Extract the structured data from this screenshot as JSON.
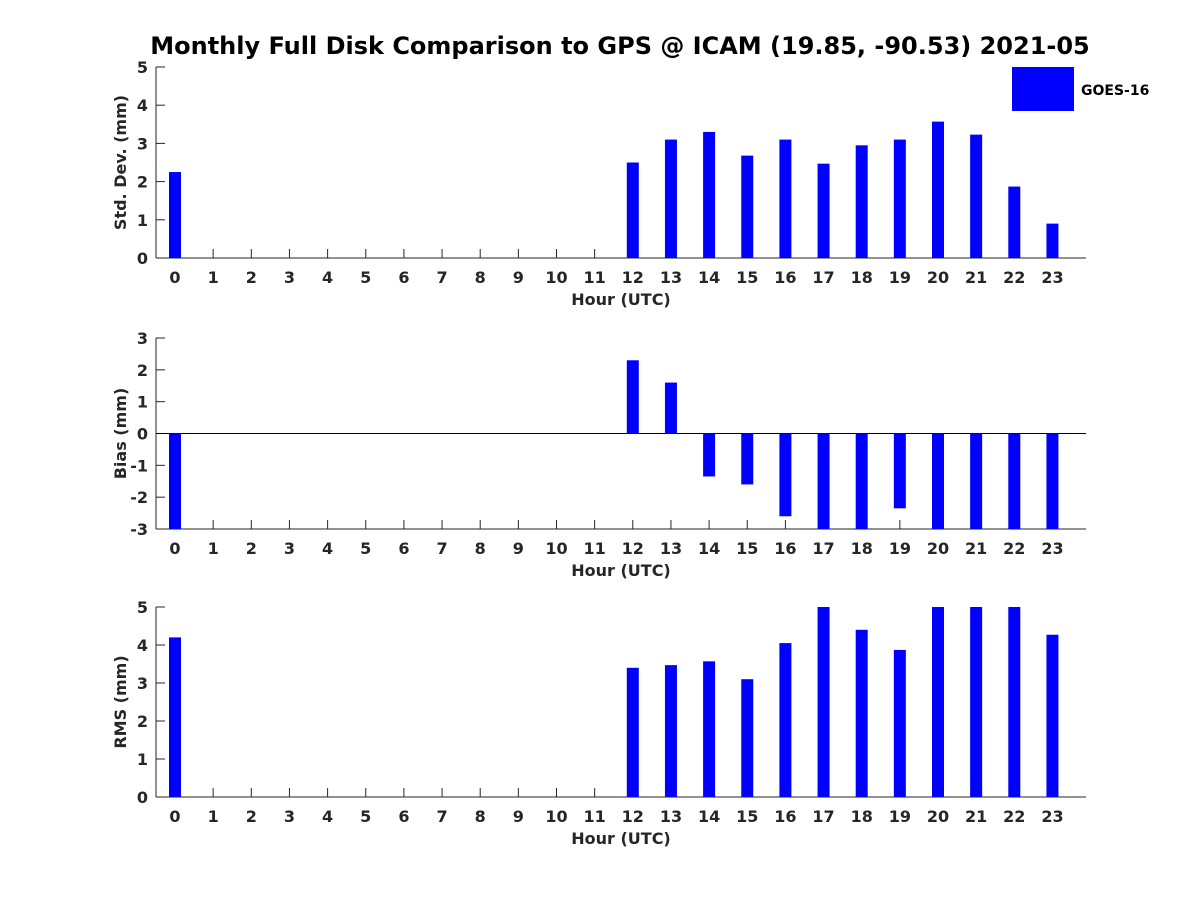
{
  "title": "Monthly Full Disk Comparison to GPS @ ICAM (19.85, -90.53) 2021-05",
  "legend": {
    "label": "GOES-16",
    "color": "#0000ff",
    "placement": "top-right"
  },
  "chart_data": [
    {
      "type": "bar",
      "name": "std-dev",
      "xlabel": "Hour (UTC)",
      "ylabel": "Std. Dev. (mm)",
      "ylim": [
        0,
        5
      ],
      "yticks": [
        0,
        1,
        2,
        3,
        4,
        5
      ],
      "categories": [
        "0",
        "1",
        "2",
        "3",
        "4",
        "5",
        "6",
        "7",
        "8",
        "9",
        "10",
        "11",
        "12",
        "13",
        "14",
        "15",
        "16",
        "17",
        "18",
        "19",
        "20",
        "21",
        "22",
        "23"
      ],
      "series": [
        {
          "name": "GOES-16",
          "color": "#0000ff",
          "values": [
            2.25,
            null,
            null,
            null,
            null,
            null,
            null,
            null,
            null,
            null,
            null,
            null,
            2.5,
            3.1,
            3.3,
            2.68,
            3.1,
            2.47,
            2.95,
            3.1,
            3.57,
            3.23,
            1.87,
            0.9
          ]
        }
      ]
    },
    {
      "type": "bar",
      "name": "bias",
      "xlabel": "Hour (UTC)",
      "ylabel": "Bias (mm)",
      "ylim": [
        -3,
        3
      ],
      "yticks": [
        -3,
        -2,
        -1,
        0,
        1,
        2,
        3
      ],
      "zero_line": true,
      "categories": [
        "0",
        "1",
        "2",
        "3",
        "4",
        "5",
        "6",
        "7",
        "8",
        "9",
        "10",
        "11",
        "12",
        "13",
        "14",
        "15",
        "16",
        "17",
        "18",
        "19",
        "20",
        "21",
        "22",
        "23"
      ],
      "series": [
        {
          "name": "GOES-16",
          "color": "#0000ff",
          "values": [
            -3.0,
            null,
            null,
            null,
            null,
            null,
            null,
            null,
            null,
            null,
            null,
            null,
            2.3,
            1.6,
            -1.35,
            -1.6,
            -2.6,
            -3.0,
            -3.0,
            -2.35,
            -3.0,
            -3.0,
            -3.0,
            -3.0
          ]
        }
      ]
    },
    {
      "type": "bar",
      "name": "rms",
      "xlabel": "Hour (UTC)",
      "ylabel": "RMS (mm)",
      "ylim": [
        0,
        5
      ],
      "yticks": [
        0,
        1,
        2,
        3,
        4,
        5
      ],
      "categories": [
        "0",
        "1",
        "2",
        "3",
        "4",
        "5",
        "6",
        "7",
        "8",
        "9",
        "10",
        "11",
        "12",
        "13",
        "14",
        "15",
        "16",
        "17",
        "18",
        "19",
        "20",
        "21",
        "22",
        "23"
      ],
      "series": [
        {
          "name": "GOES-16",
          "color": "#0000ff",
          "values": [
            4.2,
            null,
            null,
            null,
            null,
            null,
            null,
            null,
            null,
            null,
            null,
            null,
            3.4,
            3.47,
            3.57,
            3.1,
            4.05,
            5.0,
            4.4,
            3.87,
            5.0,
            5.0,
            5.0,
            4.27
          ]
        }
      ]
    }
  ]
}
